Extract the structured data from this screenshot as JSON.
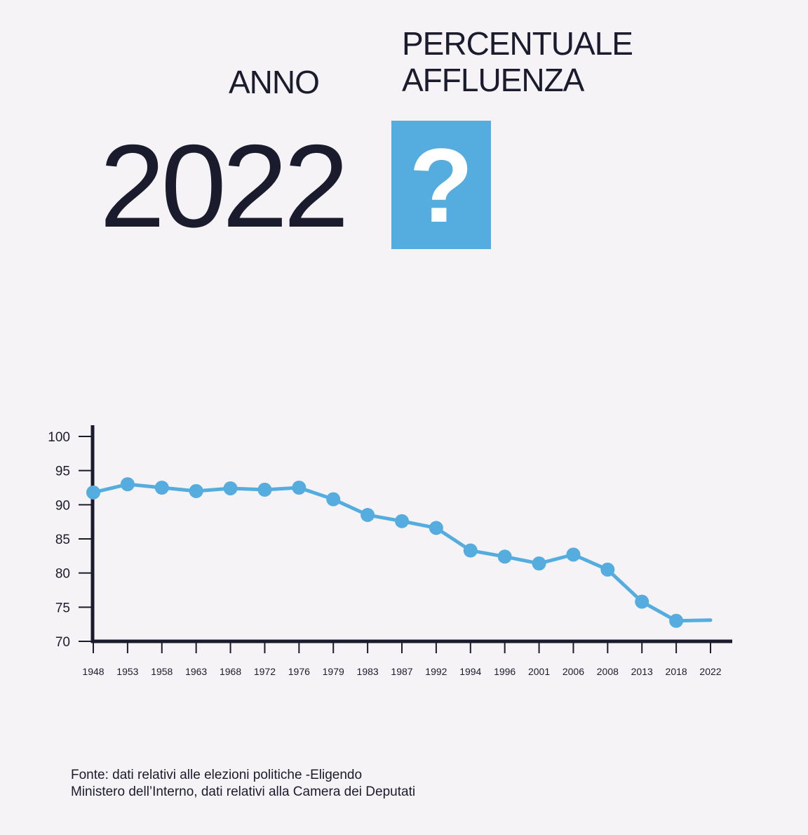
{
  "header": {
    "anno_label": "ANNO",
    "percentuale_label_line1": "PERCENTUALE",
    "percentuale_label_line2": "AFFLUENZA",
    "year": "2022",
    "unknown_value": "?",
    "accent_color": "#55addf"
  },
  "chart_data": {
    "type": "line",
    "title": "",
    "xlabel": "",
    "ylabel": "",
    "ylim": [
      70,
      100
    ],
    "yticks": [
      100,
      95,
      90,
      85,
      80,
      75,
      70
    ],
    "categories": [
      "1948",
      "1953",
      "1958",
      "1963",
      "1968",
      "1972",
      "1976",
      "1979",
      "1983",
      "1987",
      "1992",
      "1994",
      "1996",
      "2001",
      "2006",
      "2008",
      "2013",
      "2018",
      "2022"
    ],
    "series": [
      {
        "color": "#55addf",
        "values": [
          91.8,
          93.0,
          92.5,
          92.0,
          92.4,
          92.2,
          92.5,
          90.8,
          88.5,
          87.6,
          86.6,
          83.3,
          82.4,
          81.4,
          82.7,
          80.5,
          75.8,
          73.0,
          null
        ]
      }
    ],
    "grid": false,
    "legend": "none"
  },
  "footer": {
    "source_line1": "Fonte: dati relativi alle elezioni politiche -Eligendo",
    "source_line2": "Ministero dell’Interno, dati relativi alla Camera dei Deputati"
  }
}
